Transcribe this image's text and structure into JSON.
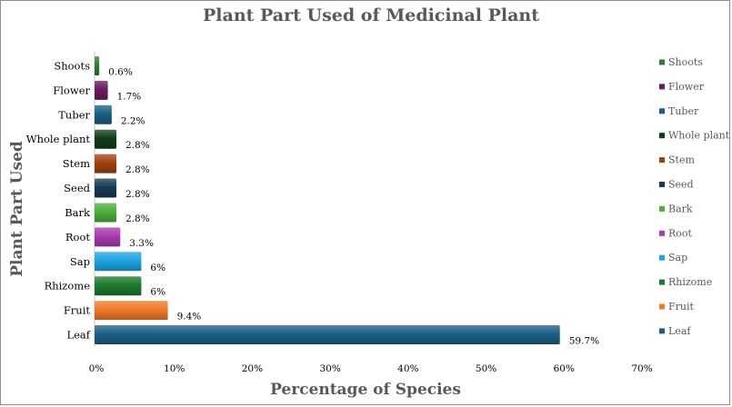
{
  "chart_data": {
    "type": "bar",
    "orientation": "horizontal",
    "title": "Plant Part Used of Medicinal Plant",
    "xlabel": "Percentage of Species",
    "ylabel": "Plant Part Used",
    "xlim": [
      0,
      70
    ],
    "xticks": [
      "0%",
      "10%",
      "20%",
      "30%",
      "40%",
      "50%",
      "60%",
      "70%"
    ],
    "grid": false,
    "legend_position": "right",
    "categories": [
      "Shoots",
      "Flower",
      "Tuber",
      "Whole plant",
      "Stem",
      "Seed",
      "Bark",
      "Root",
      "Sap",
      "Rhizome",
      "Fruit",
      "Leaf"
    ],
    "values": [
      0.6,
      1.7,
      2.2,
      2.8,
      2.8,
      2.8,
      2.8,
      3.3,
      6,
      6,
      9.4,
      59.7
    ],
    "data_labels": [
      "0.6%",
      "1.7%",
      "2.2%",
      "2.8%",
      "2.8%",
      "2.8%",
      "2.8%",
      "3.3%",
      "6%",
      "6%",
      "9.4%",
      "59.7%"
    ],
    "colors": [
      "#2e7d32",
      "#6a1b5e",
      "#1a5f80",
      "#0f3d1a",
      "#a0420e",
      "#153a52",
      "#4caf3c",
      "#a83aae",
      "#1fa3e0",
      "#1e7a2e",
      "#ee7a2a",
      "#1b5f86"
    ]
  }
}
